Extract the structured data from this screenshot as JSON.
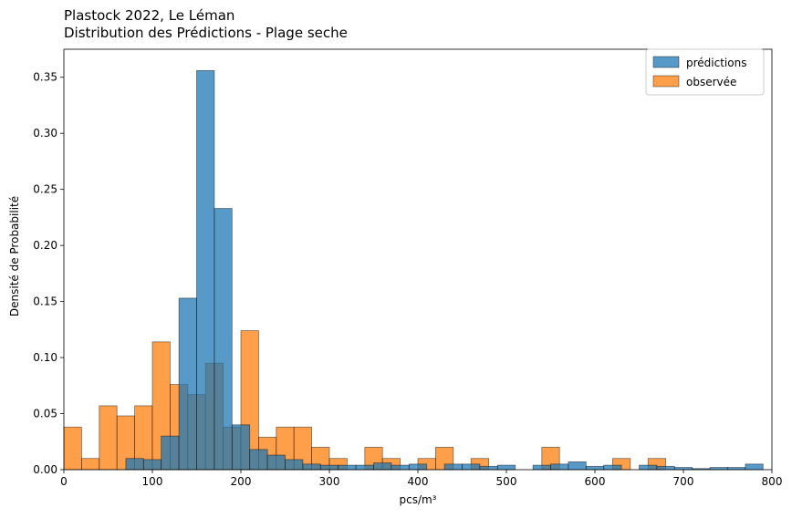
{
  "colors": {
    "predictions": "#1f77b4",
    "observed": "#ff7f0e"
  },
  "chart_data": {
    "type": "bar",
    "title": "Plastock 2022, Le Léman",
    "subtitle": "Distribution des Prédictions - Plage seche",
    "xlabel": "pcs/m³",
    "ylabel": "Densité de Probabilité",
    "xlim": [
      0,
      800
    ],
    "ylim": [
      0,
      0.375
    ],
    "xticks": [
      0,
      100,
      200,
      300,
      400,
      500,
      600,
      700,
      800
    ],
    "yticks": [
      0.0,
      0.05,
      0.1,
      0.15,
      0.2,
      0.25,
      0.3,
      0.35
    ],
    "legend_position": "top-right",
    "series": [
      {
        "name": "prédictions",
        "color": "#1f77b4",
        "bin_width": 20,
        "bins": [
          {
            "x0": 70,
            "y": 0.01
          },
          {
            "x0": 90,
            "y": 0.009
          },
          {
            "x0": 110,
            "y": 0.03
          },
          {
            "x0": 130,
            "y": 0.153
          },
          {
            "x0": 150,
            "y": 0.356
          },
          {
            "x0": 170,
            "y": 0.233
          },
          {
            "x0": 190,
            "y": 0.04
          },
          {
            "x0": 210,
            "y": 0.018
          },
          {
            "x0": 230,
            "y": 0.013
          },
          {
            "x0": 250,
            "y": 0.009
          },
          {
            "x0": 270,
            "y": 0.005
          },
          {
            "x0": 290,
            "y": 0.004
          },
          {
            "x0": 310,
            "y": 0.004
          },
          {
            "x0": 330,
            "y": 0.004
          },
          {
            "x0": 350,
            "y": 0.006
          },
          {
            "x0": 370,
            "y": 0.004
          },
          {
            "x0": 390,
            "y": 0.005
          },
          {
            "x0": 430,
            "y": 0.005
          },
          {
            "x0": 450,
            "y": 0.005
          },
          {
            "x0": 470,
            "y": 0.003
          },
          {
            "x0": 490,
            "y": 0.004
          },
          {
            "x0": 530,
            "y": 0.004
          },
          {
            "x0": 550,
            "y": 0.005
          },
          {
            "x0": 570,
            "y": 0.007
          },
          {
            "x0": 590,
            "y": 0.003
          },
          {
            "x0": 610,
            "y": 0.004
          },
          {
            "x0": 650,
            "y": 0.004
          },
          {
            "x0": 670,
            "y": 0.003
          },
          {
            "x0": 690,
            "y": 0.002
          },
          {
            "x0": 710,
            "y": 0.001
          },
          {
            "x0": 730,
            "y": 0.002
          },
          {
            "x0": 750,
            "y": 0.002
          },
          {
            "x0": 770,
            "y": 0.005
          }
        ]
      },
      {
        "name": "observée",
        "color": "#ff7f0e",
        "bin_width": 20,
        "bins": [
          {
            "x0": 0,
            "y": 0.038
          },
          {
            "x0": 20,
            "y": 0.01
          },
          {
            "x0": 40,
            "y": 0.057
          },
          {
            "x0": 60,
            "y": 0.048
          },
          {
            "x0": 80,
            "y": 0.057
          },
          {
            "x0": 100,
            "y": 0.114
          },
          {
            "x0": 120,
            "y": 0.076
          },
          {
            "x0": 140,
            "y": 0.067
          },
          {
            "x0": 160,
            "y": 0.095
          },
          {
            "x0": 180,
            "y": 0.038
          },
          {
            "x0": 200,
            "y": 0.124
          },
          {
            "x0": 220,
            "y": 0.029
          },
          {
            "x0": 240,
            "y": 0.038
          },
          {
            "x0": 260,
            "y": 0.038
          },
          {
            "x0": 280,
            "y": 0.02
          },
          {
            "x0": 300,
            "y": 0.01
          },
          {
            "x0": 340,
            "y": 0.02
          },
          {
            "x0": 360,
            "y": 0.01
          },
          {
            "x0": 400,
            "y": 0.01
          },
          {
            "x0": 420,
            "y": 0.02
          },
          {
            "x0": 460,
            "y": 0.01
          },
          {
            "x0": 540,
            "y": 0.02
          },
          {
            "x0": 620,
            "y": 0.01
          },
          {
            "x0": 660,
            "y": 0.01
          }
        ]
      }
    ]
  }
}
